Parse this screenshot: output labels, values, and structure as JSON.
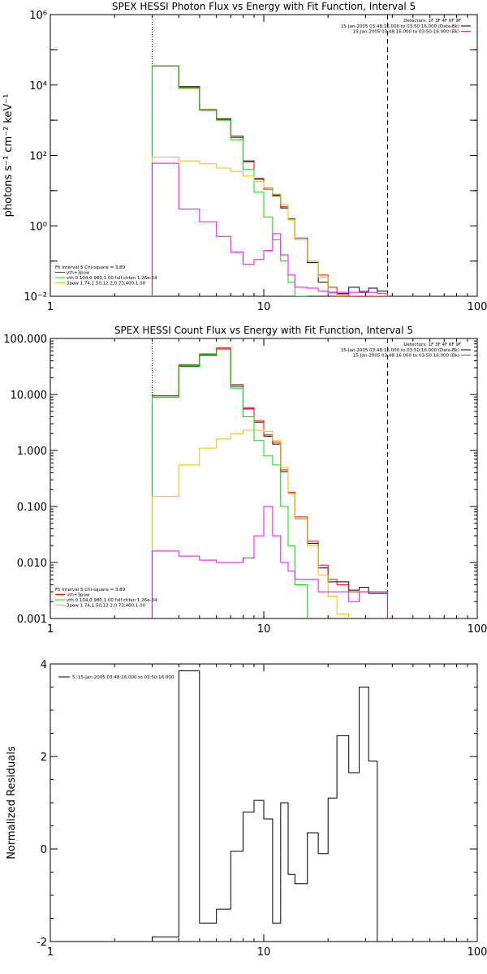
{
  "chart_data": [
    {
      "type": "line",
      "title": "SPEX HESSI Photon Flux vs Energy with Fit Function, Interval 5",
      "ylabel": "photons s⁻¹ cm⁻² keV⁻¹",
      "xscale": "log",
      "yscale": "log",
      "xlim": [
        1,
        100
      ],
      "ylim": [
        0.01,
        1000000
      ],
      "xticks": [
        1,
        10,
        100
      ],
      "xticklabels": [
        "1",
        "10",
        "100"
      ],
      "yticks": [
        0.01,
        1,
        100,
        10000,
        1000000
      ],
      "yticklabels": [
        "10⁻²",
        "10⁰",
        "10²",
        "10⁴",
        "10⁶"
      ],
      "vlines": [
        {
          "x": 3,
          "style": "dotted"
        },
        {
          "x": 38,
          "style": "dashed"
        }
      ],
      "top_legend": {
        "header": "Detectors: 1F 3F 4F 6F 9F",
        "entries": [
          {
            "text": "15-Jan-2005 03:48:16.000 to 03:50:16.000 (Data-Bk)",
            "color": "#000000"
          },
          {
            "text": "15-Jan-2005 03:48:16.000 to 03:50:16.000 (Bk)",
            "color": "#ff00ff"
          }
        ]
      },
      "fit_legend": {
        "header": "Fit Interval 5   Chi-square = 3.89",
        "entries": [
          {
            "text": "vth+3pow",
            "color": "#ff0000"
          },
          {
            "text": "vth 0.104,0.980,1.00  full chfan 1.26e-04",
            "color": "#00dd00"
          },
          {
            "text": "3pow 1.74,1.50,12.2,0.73,400,1.00",
            "color": "#e8c000"
          }
        ]
      },
      "edges": [
        3,
        4,
        5,
        6,
        7,
        8,
        9,
        10,
        11,
        12,
        13,
        14,
        16,
        18,
        20,
        22,
        25,
        28,
        31,
        34,
        38
      ],
      "series": [
        {
          "name": "Data-Bk",
          "color": "#000000",
          "values": [
            35000,
            9000,
            2000,
            1100,
            350,
            70,
            22,
            12,
            7.5,
            3.2,
            1.5,
            0.4,
            0.09,
            0.025,
            0.013,
            0.012,
            0.018,
            0.013,
            0.017,
            0.014
          ]
        },
        {
          "name": "vth+3pow",
          "color": "#ff0000",
          "values": [
            35000,
            8500,
            2000,
            1050,
            320,
            65,
            21,
            11,
            7,
            3.5,
            1.6,
            0.45,
            0.1,
            0.04,
            0.018,
            0.011,
            0.01,
            0.01,
            0.01,
            0.01
          ]
        },
        {
          "name": "vth",
          "color": "#00dd00",
          "values": [
            35000,
            8000,
            1900,
            1000,
            280,
            40,
            9,
            1.8,
            0.4,
            0.1,
            0.025,
            0.005
          ]
        },
        {
          "name": "3pow",
          "color": "#e8c000",
          "values": [
            90,
            70,
            58,
            44,
            35,
            26,
            18,
            12,
            8,
            4,
            1.5,
            0.4,
            0.1,
            0.035,
            0.012,
            0.008
          ]
        },
        {
          "name": "Bk",
          "color": "#ff00ff",
          "values": [
            60,
            3,
            1.3,
            0.5,
            0.18,
            0.08,
            0.11,
            0.2,
            0.6,
            0.15,
            0.04,
            0.018,
            0.017,
            0.014,
            0.013,
            0.013,
            0.013,
            0.014,
            0.013,
            0.012
          ]
        }
      ]
    },
    {
      "type": "line",
      "title": "SPEX HESSI Count Flux vs Energy with Fit Function, Interval 5",
      "ylabel": "",
      "xscale": "log",
      "yscale": "log",
      "xlim": [
        1,
        100
      ],
      "ylim": [
        0.001,
        100
      ],
      "xticks": [
        1,
        10,
        100
      ],
      "xticklabels": [
        "1",
        "10",
        "100"
      ],
      "yticks": [
        0.001,
        0.01,
        0.1,
        1,
        10,
        100
      ],
      "yticklabels": [
        "0.001",
        "0.010",
        "0.100",
        "1.000",
        "10.000",
        "100.000"
      ],
      "vlines": [
        {
          "x": 3,
          "style": "dotted"
        },
        {
          "x": 38,
          "style": "dashed"
        }
      ],
      "top_legend": {
        "header": "Detectors: 1F 3F 4F 6F 9F",
        "entries": [
          {
            "text": "15-Jan-2005 03:48:16.000 to 03:50:16.000 (Data-Bk)",
            "color": "#000000"
          },
          {
            "text": "15-Jan-2005 03:48:16.000 to 03:50:16.000 (Bk)",
            "color": "#ff00ff"
          }
        ]
      },
      "fit_legend": {
        "header": "Fit Interval 5   Chi-square = 3.89",
        "entries": [
          {
            "text": "vth+3pow",
            "color": "#ff0000"
          },
          {
            "text": "vth 0.104,0.980,1.00  full chfan 1.26e-04",
            "color": "#00dd00"
          },
          {
            "text": "3pow 1.74,1.50,12.2,0.73,400,1.00",
            "color": "#e8c000"
          }
        ]
      },
      "edges": [
        3,
        4,
        5,
        6,
        7,
        8,
        9,
        10,
        11,
        12,
        13,
        14,
        16,
        18,
        20,
        22,
        25,
        28,
        31,
        34,
        38
      ],
      "series": [
        {
          "name": "Data-Bk",
          "color": "#000000",
          "values": [
            9,
            32,
            50,
            65,
            14,
            5.5,
            3.2,
            1.8,
            1.3,
            0.42,
            0.17,
            0.06,
            0.022,
            0.008,
            0.0045,
            0.0045,
            0.0032,
            0.0036,
            0.0028,
            0.0028
          ]
        },
        {
          "name": "vth+3pow",
          "color": "#ff0000",
          "values": [
            9.5,
            34,
            53,
            68,
            15,
            5.8,
            3.4,
            1.9,
            1.4,
            0.45,
            0.18,
            0.065,
            0.024,
            0.009,
            0.005,
            0.004,
            0.003,
            0.003,
            0.003,
            0.003
          ]
        },
        {
          "name": "vth",
          "color": "#00dd00",
          "values": [
            9,
            33,
            52,
            66,
            13,
            4,
            1.5,
            0.8,
            0.55,
            0.1,
            0.02,
            0.004
          ]
        },
        {
          "name": "3pow",
          "color": "#e8c000",
          "values": [
            0.15,
            0.55,
            1.1,
            1.6,
            2.0,
            2.3,
            2.3,
            2.2,
            1.5,
            0.5,
            0.17,
            0.06,
            0.02,
            0.006,
            0.0025,
            0.0012
          ]
        },
        {
          "name": "Bk",
          "color": "#ff00ff",
          "values": [
            0.016,
            0.013,
            0.011,
            0.01,
            0.01,
            0.012,
            0.03,
            0.1,
            0.03,
            0.01,
            0.007,
            0.005,
            0.005,
            0.003,
            0.003,
            0.003,
            0.002,
            0.003,
            0.003,
            0.003
          ]
        }
      ]
    },
    {
      "type": "line",
      "title": "",
      "ylabel": "Normalized Residuals",
      "xscale": "log",
      "yscale": "linear",
      "xlim": [
        1,
        100
      ],
      "ylim": [
        -2,
        4
      ],
      "xticks": [
        1,
        10,
        100
      ],
      "xticklabels": [
        "1",
        "10",
        "100"
      ],
      "yticks": [
        -2,
        0,
        2,
        4
      ],
      "yticklabels": [
        "-2",
        "0",
        "2",
        "4"
      ],
      "legend": {
        "text": "5. 15-Jan-2005 03:48:16.000 to 03:50:16.000",
        "color": "#000000"
      },
      "edges": [
        3,
        4,
        5,
        6,
        7,
        8,
        9,
        10,
        11,
        12,
        13,
        14,
        16,
        18,
        20,
        22,
        25,
        28,
        31,
        34,
        38
      ],
      "series": [
        {
          "name": "5. 15-Jan-2005 03:48:16.000 to 03:50:16.000",
          "color": "#000000",
          "values": [
            -1.9,
            3.85,
            -1.6,
            -1.3,
            -0.05,
            0.8,
            1.05,
            0.65,
            -1.6,
            1.0,
            -0.55,
            -0.75,
            0.35,
            -0.1,
            1.1,
            2.45,
            1.65,
            3.5,
            1.9,
            -2
          ]
        }
      ]
    }
  ]
}
